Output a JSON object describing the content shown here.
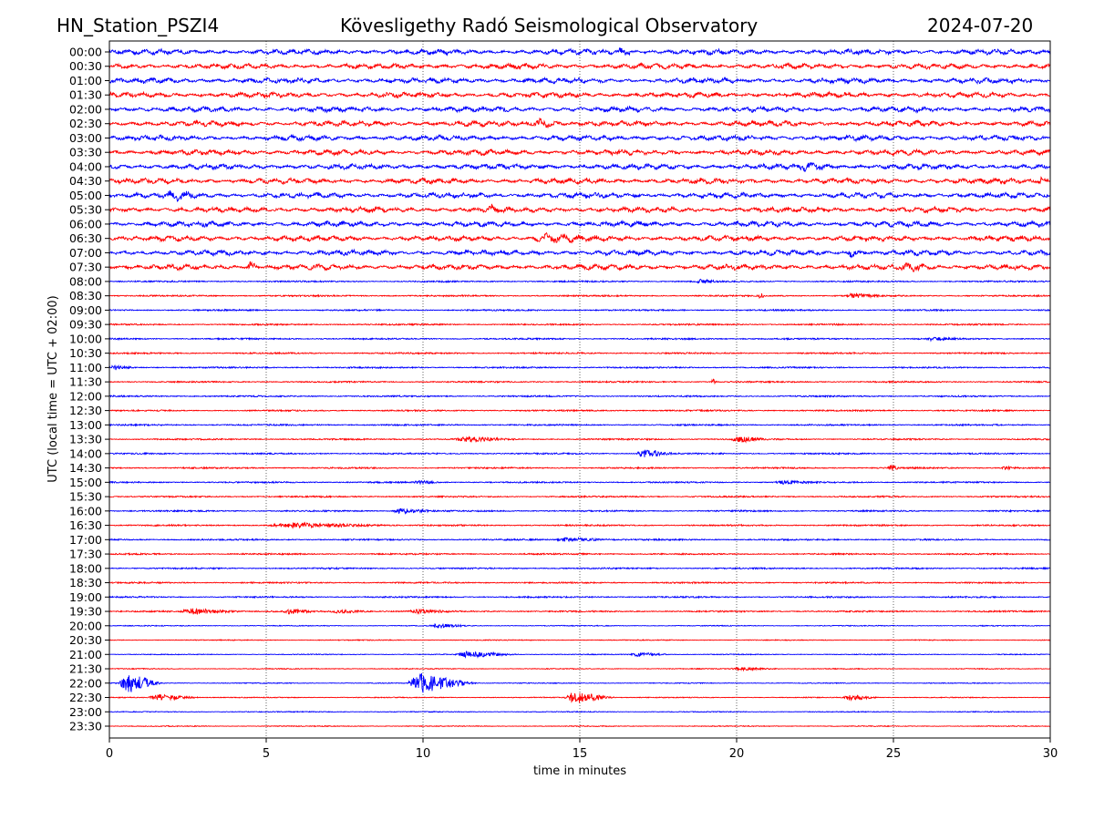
{
  "header": {
    "station": "HN_Station_PSZI4",
    "observatory": "Kövesligethy Radó Seismological Observatory",
    "date": "2024-07-20"
  },
  "chart_data": {
    "type": "line",
    "title": "Kövesligethy Radó Seismological Observatory",
    "xlabel": "time in minutes",
    "ylabel": "UTC (local time = UTC + 02:00)",
    "xlim": [
      0,
      30
    ],
    "xticks": [
      "0",
      "5",
      "10",
      "15",
      "20",
      "25",
      "30"
    ],
    "grid": "vertical dotted",
    "colors": [
      "#0000ff",
      "#ff0000"
    ],
    "rows": [
      "00:00",
      "00:30",
      "01:00",
      "01:30",
      "02:00",
      "02:30",
      "03:00",
      "03:30",
      "04:00",
      "04:30",
      "05:00",
      "05:30",
      "06:00",
      "06:30",
      "07:00",
      "07:30",
      "08:00",
      "08:30",
      "09:00",
      "09:30",
      "10:00",
      "10:30",
      "11:00",
      "11:30",
      "12:00",
      "12:30",
      "13:00",
      "13:30",
      "14:00",
      "14:30",
      "15:00",
      "15:30",
      "16:00",
      "16:30",
      "17:00",
      "17:30",
      "18:00",
      "18:30",
      "19:00",
      "19:30",
      "20:00",
      "20:30",
      "21:00",
      "21:30",
      "22:00",
      "22:30",
      "23:00",
      "23:30"
    ],
    "events": [
      {
        "row": "22:00",
        "start": 0.3,
        "end": 1.7,
        "amplitude": 22
      },
      {
        "row": "22:00",
        "start": 9.5,
        "end": 11.8,
        "amplitude": 20
      },
      {
        "row": "22:30",
        "start": 1.2,
        "end": 3.0,
        "amplitude": 6
      },
      {
        "row": "22:30",
        "start": 14.5,
        "end": 16.2,
        "amplitude": 12
      },
      {
        "row": "22:30",
        "start": 23.4,
        "end": 24.6,
        "amplitude": 6
      },
      {
        "row": "21:30",
        "start": 19.8,
        "end": 21.5,
        "amplitude": 3
      },
      {
        "row": "21:00",
        "start": 11.0,
        "end": 13.2,
        "amplitude": 6
      },
      {
        "row": "21:00",
        "start": 16.6,
        "end": 18.0,
        "amplitude": 4
      },
      {
        "row": "20:00",
        "start": 10.2,
        "end": 11.6,
        "amplitude": 4
      },
      {
        "row": "19:30",
        "start": 2.2,
        "end": 4.5,
        "amplitude": 5
      },
      {
        "row": "19:30",
        "start": 5.5,
        "end": 6.6,
        "amplitude": 4
      },
      {
        "row": "19:30",
        "start": 7.0,
        "end": 8.6,
        "amplitude": 3
      },
      {
        "row": "19:30",
        "start": 9.5,
        "end": 11.0,
        "amplitude": 3
      },
      {
        "row": "17:00",
        "start": 14.2,
        "end": 16.2,
        "amplitude": 4
      },
      {
        "row": "16:30",
        "start": 5.0,
        "end": 9.5,
        "amplitude": 4
      },
      {
        "row": "16:00",
        "start": 9.0,
        "end": 10.5,
        "amplitude": 5
      },
      {
        "row": "15:00",
        "start": 9.7,
        "end": 10.6,
        "amplitude": 3
      },
      {
        "row": "15:00",
        "start": 21.2,
        "end": 22.6,
        "amplitude": 3
      },
      {
        "row": "14:30",
        "start": 24.8,
        "end": 25.3,
        "amplitude": 5
      },
      {
        "row": "14:30",
        "start": 28.4,
        "end": 29.1,
        "amplitude": 3
      },
      {
        "row": "14:00",
        "start": 16.8,
        "end": 18.0,
        "amplitude": 9
      },
      {
        "row": "13:30",
        "start": 11.0,
        "end": 13.0,
        "amplitude": 4
      },
      {
        "row": "13:30",
        "start": 19.8,
        "end": 21.0,
        "amplitude": 6
      },
      {
        "row": "11:30",
        "start": 19.2,
        "end": 19.4,
        "amplitude": 6
      },
      {
        "row": "11:00",
        "start": 0.0,
        "end": 0.8,
        "amplitude": 5
      },
      {
        "row": "10:00",
        "start": 26.0,
        "end": 27.2,
        "amplitude": 3
      },
      {
        "row": "08:30",
        "start": 23.5,
        "end": 24.6,
        "amplitude": 5
      },
      {
        "row": "08:30",
        "start": 20.7,
        "end": 20.9,
        "amplitude": 8
      },
      {
        "row": "08:00",
        "start": 18.7,
        "end": 19.5,
        "amplitude": 4
      },
      {
        "row": "07:30",
        "start": 4.4,
        "end": 4.8,
        "amplitude": 7
      },
      {
        "row": "07:30",
        "start": 25.2,
        "end": 26.5,
        "amplitude": 4
      },
      {
        "row": "07:00",
        "start": 23.5,
        "end": 24.0,
        "amplitude": 5
      },
      {
        "row": "06:30",
        "start": 13.5,
        "end": 15.5,
        "amplitude": 4
      },
      {
        "row": "05:30",
        "start": 12.0,
        "end": 12.8,
        "amplitude": 4
      },
      {
        "row": "05:00",
        "start": 1.8,
        "end": 3.0,
        "amplitude": 4
      },
      {
        "row": "04:30",
        "start": 29.6,
        "end": 30.0,
        "amplitude": 5
      },
      {
        "row": "04:00",
        "start": 22.0,
        "end": 23.2,
        "amplitude": 4
      },
      {
        "row": "02:30",
        "start": 13.5,
        "end": 14.6,
        "amplitude": 5
      },
      {
        "row": "00:00",
        "start": 16.2,
        "end": 16.8,
        "amplitude": 4
      }
    ]
  }
}
